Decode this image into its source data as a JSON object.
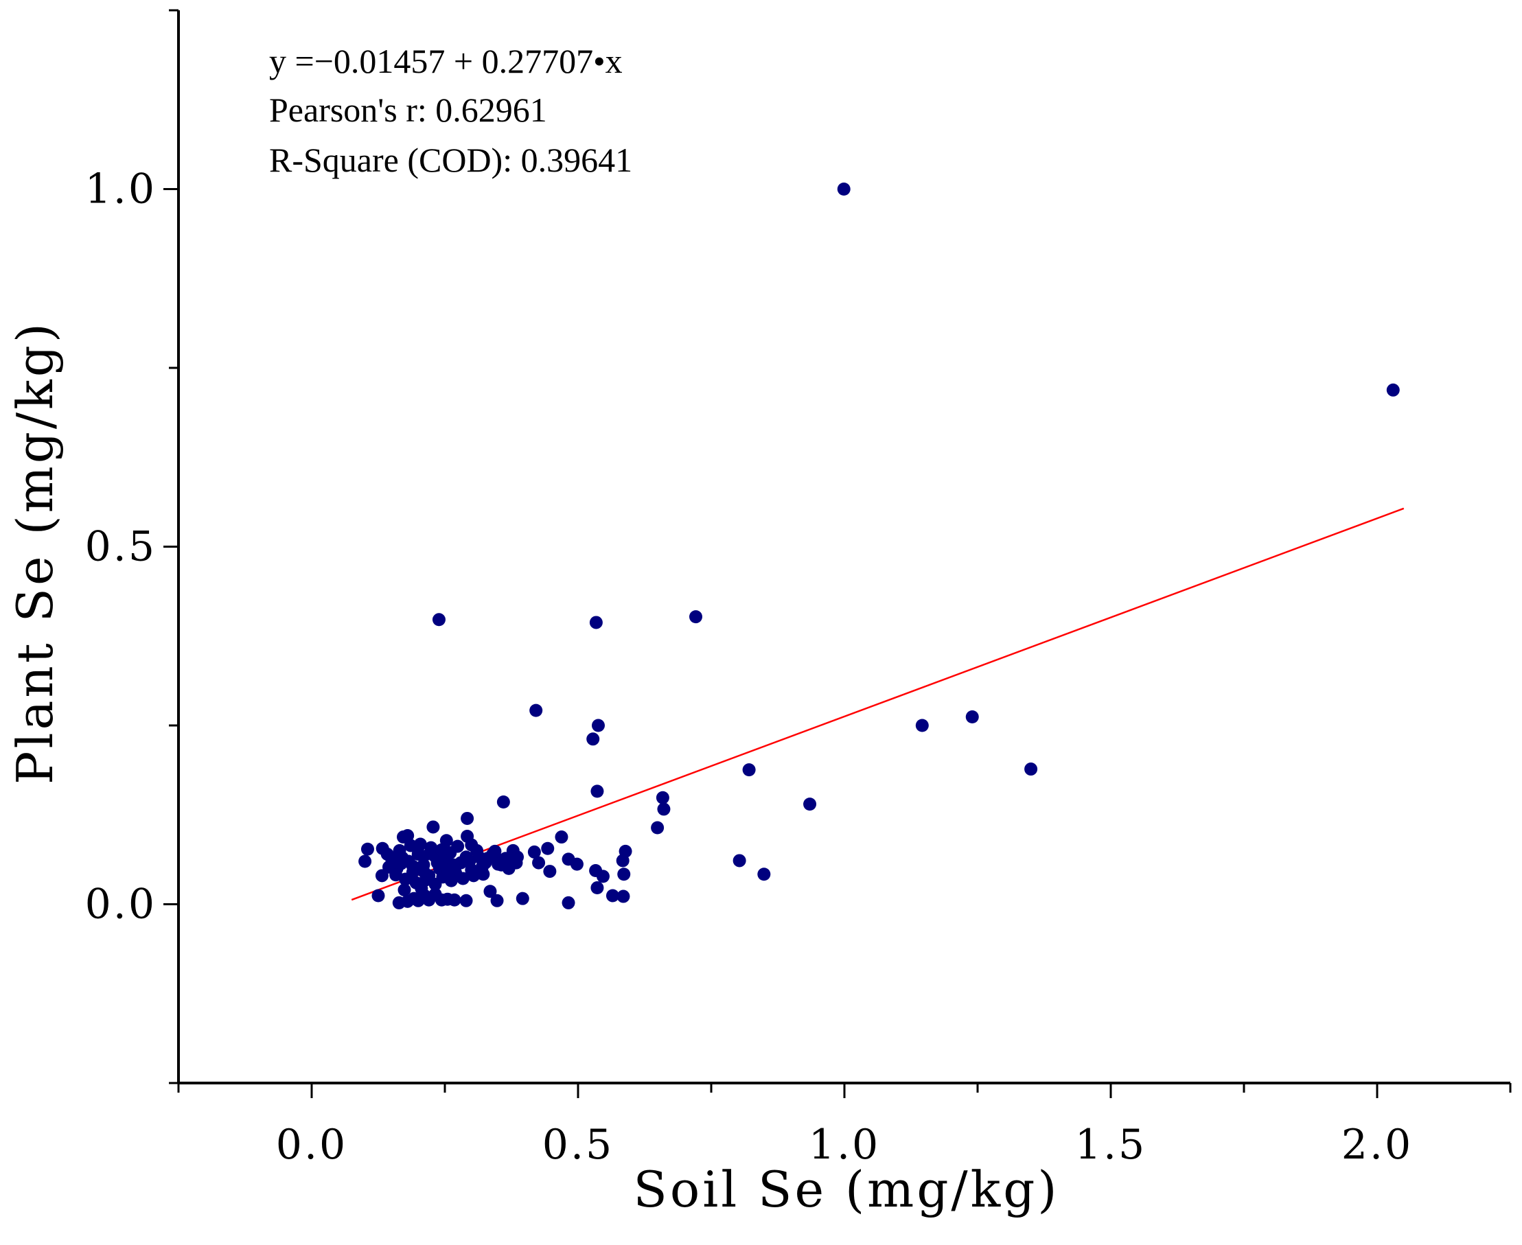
{
  "chart_data": {
    "type": "scatter",
    "title": "",
    "xlabel": "Soil Se (mg/kg)",
    "ylabel": "Plant Se (mg/kg)",
    "xlim": [
      -0.25,
      2.25
    ],
    "ylim": [
      -0.25,
      1.25
    ],
    "x_ticks": [
      {
        "value": 0.0,
        "label": "0.0"
      },
      {
        "value": 0.5,
        "label": "0.5"
      },
      {
        "value": 1.0,
        "label": "1.0"
      },
      {
        "value": 1.5,
        "label": "1.5"
      },
      {
        "value": 2.0,
        "label": "2.0"
      }
    ],
    "x_minor_ticks": [
      -0.25,
      0.25,
      0.75,
      1.25,
      1.75,
      2.25
    ],
    "y_ticks": [
      {
        "value": 0.0,
        "label": "0.0"
      },
      {
        "value": 0.5,
        "label": "0.5"
      },
      {
        "value": 1.0,
        "label": "1.0"
      }
    ],
    "y_minor_ticks": [
      -0.25,
      0.25,
      0.75,
      1.25
    ],
    "grid": false,
    "point_color": "#00007f",
    "fit_color": "#ff0000",
    "fit_line": {
      "intercept": -0.01457,
      "slope": 0.27707,
      "x_range": [
        0.075,
        2.05
      ]
    },
    "annotations": [
      "y =−0.01457 + 0.27707•x",
      "Pearson's r: 0.62961",
      "R-Square (COD): 0.39641"
    ],
    "points": [
      [
        0.999,
        1.0
      ],
      [
        2.03,
        0.719
      ],
      [
        0.239,
        0.398
      ],
      [
        0.534,
        0.394
      ],
      [
        0.721,
        0.402
      ],
      [
        0.421,
        0.271
      ],
      [
        0.538,
        0.25
      ],
      [
        0.528,
        0.231
      ],
      [
        1.146,
        0.25
      ],
      [
        1.24,
        0.262
      ],
      [
        1.35,
        0.189
      ],
      [
        0.821,
        0.188
      ],
      [
        0.536,
        0.158
      ],
      [
        0.36,
        0.143
      ],
      [
        0.935,
        0.14
      ],
      [
        0.659,
        0.149
      ],
      [
        0.661,
        0.133
      ],
      [
        0.649,
        0.107
      ],
      [
        0.803,
        0.061
      ],
      [
        0.849,
        0.042
      ],
      [
        0.589,
        0.074
      ],
      [
        0.584,
        0.061
      ],
      [
        0.586,
        0.042
      ],
      [
        0.585,
        0.011
      ],
      [
        0.565,
        0.012
      ],
      [
        0.536,
        0.023
      ],
      [
        0.547,
        0.039
      ],
      [
        0.533,
        0.047
      ],
      [
        0.482,
        0.002
      ],
      [
        0.396,
        0.008
      ],
      [
        0.348,
        0.005
      ],
      [
        0.335,
        0.018
      ],
      [
        0.469,
        0.094
      ],
      [
        0.443,
        0.078
      ],
      [
        0.447,
        0.046
      ],
      [
        0.426,
        0.058
      ],
      [
        0.418,
        0.073
      ],
      [
        0.482,
        0.063
      ],
      [
        0.498,
        0.056
      ],
      [
        0.378,
        0.075
      ],
      [
        0.384,
        0.058
      ],
      [
        0.228,
        0.108
      ],
      [
        0.292,
        0.12
      ],
      [
        0.292,
        0.095
      ],
      [
        0.253,
        0.089
      ],
      [
        0.3,
        0.083
      ],
      [
        0.18,
        0.096
      ],
      [
        0.172,
        0.094
      ],
      [
        0.105,
        0.077
      ],
      [
        0.133,
        0.078
      ],
      [
        0.1,
        0.06
      ],
      [
        0.125,
        0.012
      ],
      [
        0.164,
        0.002
      ],
      [
        0.18,
        0.004
      ],
      [
        0.2,
        0.005
      ],
      [
        0.22,
        0.006
      ],
      [
        0.244,
        0.006
      ],
      [
        0.268,
        0.006
      ],
      [
        0.29,
        0.005
      ],
      [
        0.212,
        0.012
      ],
      [
        0.232,
        0.014
      ],
      [
        0.255,
        0.007
      ],
      [
        0.192,
        0.008
      ],
      [
        0.174,
        0.02
      ],
      [
        0.206,
        0.022
      ],
      [
        0.232,
        0.028
      ],
      [
        0.132,
        0.04
      ],
      [
        0.145,
        0.052
      ],
      [
        0.16,
        0.05
      ],
      [
        0.17,
        0.065
      ],
      [
        0.182,
        0.06
      ],
      [
        0.19,
        0.045
      ],
      [
        0.2,
        0.07
      ],
      [
        0.21,
        0.055
      ],
      [
        0.22,
        0.04
      ],
      [
        0.23,
        0.068
      ],
      [
        0.24,
        0.05
      ],
      [
        0.25,
        0.062
      ],
      [
        0.26,
        0.072
      ],
      [
        0.27,
        0.044
      ],
      [
        0.28,
        0.058
      ],
      [
        0.29,
        0.066
      ],
      [
        0.3,
        0.048
      ],
      [
        0.31,
        0.075
      ],
      [
        0.32,
        0.052
      ],
      [
        0.33,
        0.064
      ],
      [
        0.34,
        0.07
      ],
      [
        0.35,
        0.056
      ],
      [
        0.36,
        0.062
      ],
      [
        0.37,
        0.05
      ],
      [
        0.165,
        0.075
      ],
      [
        0.15,
        0.064
      ],
      [
        0.142,
        0.07
      ],
      [
        0.158,
        0.041
      ],
      [
        0.176,
        0.035
      ],
      [
        0.196,
        0.03
      ],
      [
        0.214,
        0.034
      ],
      [
        0.246,
        0.038
      ],
      [
        0.262,
        0.033
      ],
      [
        0.284,
        0.036
      ],
      [
        0.304,
        0.04
      ],
      [
        0.322,
        0.042
      ],
      [
        0.186,
        0.082
      ],
      [
        0.204,
        0.084
      ],
      [
        0.224,
        0.079
      ],
      [
        0.244,
        0.076
      ],
      [
        0.274,
        0.081
      ],
      [
        0.314,
        0.066
      ],
      [
        0.344,
        0.074
      ],
      [
        0.364,
        0.064
      ],
      [
        0.386,
        0.066
      ],
      [
        0.21,
        0.067
      ],
      [
        0.236,
        0.058
      ],
      [
        0.266,
        0.055
      ],
      [
        0.296,
        0.06
      ],
      [
        0.326,
        0.058
      ],
      [
        0.356,
        0.055
      ],
      [
        0.256,
        0.047
      ],
      [
        0.19,
        0.053
      ],
      [
        0.168,
        0.057
      ],
      [
        0.21,
        0.046
      ]
    ]
  }
}
